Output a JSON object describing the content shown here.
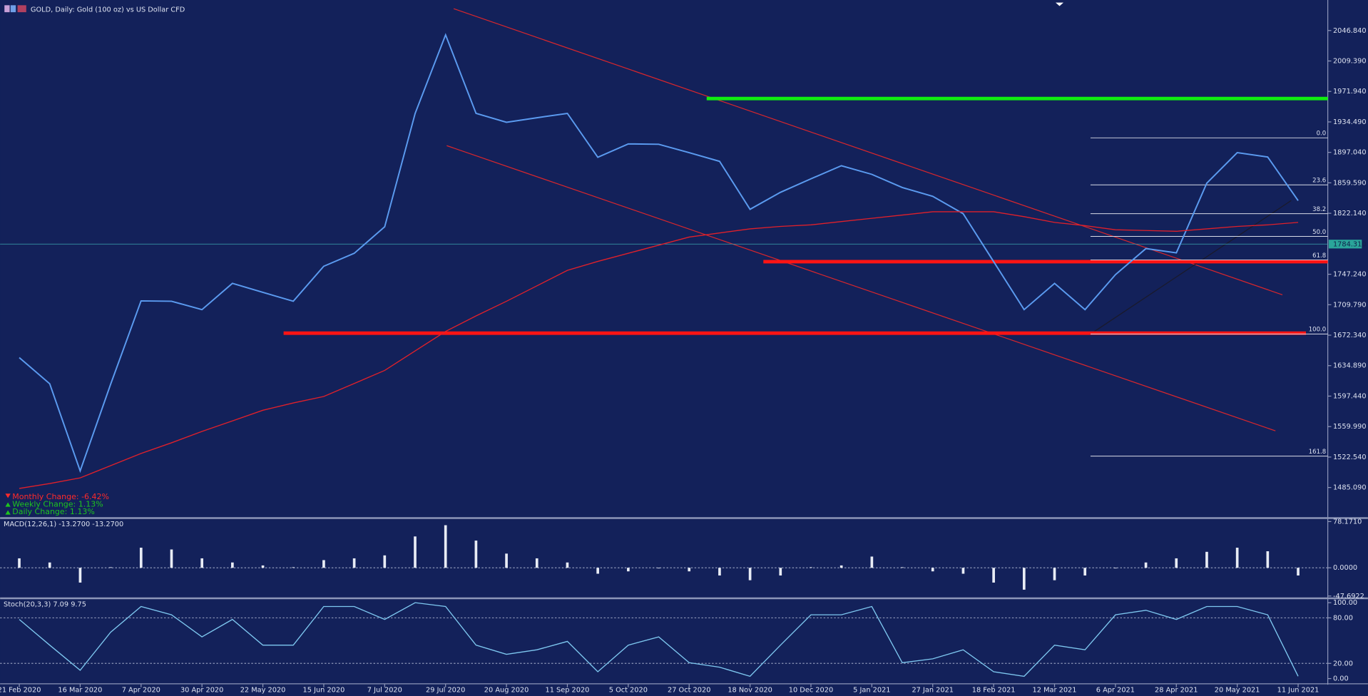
{
  "chart_data": [
    {
      "type": "line",
      "title": "GOLD, Daily:  Gold (100 oz) vs US Dollar CFD",
      "categories": [
        "21 Feb 2020",
        null,
        "16 Mar 2020",
        null,
        "7 Apr 2020",
        null,
        "30 Apr 2020",
        null,
        "22 May 2020",
        null,
        "15 Jun 2020",
        null,
        "7 Jul 2020",
        null,
        "29 Jul 2020",
        null,
        "20 Aug 2020",
        null,
        "11 Sep 2020",
        null,
        "5 Oct 2020",
        null,
        "27 Oct 2020",
        null,
        "18 Nov 2020",
        null,
        "10 Dec 2020",
        null,
        "5 Jan 2021",
        null,
        "27 Jan 2021",
        null,
        "18 Feb 2021",
        null,
        "12 Mar 2021",
        null,
        "6 Apr 2021",
        null,
        "28 Apr 2021",
        null,
        "20 May 2021",
        null,
        "11 Jun 2021"
      ],
      "series": [
        {
          "color": "#5b9bf0",
          "values": [
            1644.8,
            1612.6,
            1505.5,
            1612,
            1714.5,
            1714,
            1703.8,
            1736,
            1725,
            1714,
            1757,
            1773,
            1805.6,
            1945,
            2041.5,
            1945,
            1934,
            1939.6,
            1945,
            1891,
            1907.5,
            1907,
            1896.7,
            1886,
            1827,
            1848,
            1864.6,
            1880.7,
            1870,
            1853.9,
            1843,
            1821.7,
            1762.7,
            1703.8,
            1736,
            1703.8,
            1746.7,
            1778.8,
            1773.5,
            1859.2,
            1896.7,
            1891.4,
            1837.8
          ]
        },
        {
          "color": "#e0202a",
          "values": [
            1484,
            1490,
            1497,
            1512,
            1527,
            1540,
            1554,
            1567,
            1580,
            1589,
            1597,
            1613,
            1629,
            1653,
            1677,
            1696,
            1714,
            1733,
            1752,
            1763,
            1773,
            1783,
            1793,
            1798,
            1803,
            1806,
            1808,
            1812,
            1816,
            1820,
            1824,
            1824,
            1824,
            1818,
            1811,
            1807,
            1802,
            1801,
            1800,
            1803,
            1806,
            1808,
            1811
          ]
        }
      ],
      "ylim": [
        1448.6,
        2082.2
      ],
      "yticks": [
        {
          "value": 2046.84,
          "label": "2046.840"
        },
        {
          "value": 2009.39,
          "label": "2009.390"
        },
        {
          "value": 1971.94,
          "label": "1971.940"
        },
        {
          "value": 1934.49,
          "label": "1934.490"
        },
        {
          "value": 1897.04,
          "label": "1897.040"
        },
        {
          "value": 1859.59,
          "label": "1859.590"
        },
        {
          "value": 1822.14,
          "label": "1822.140"
        },
        {
          "value": 1747.24,
          "label": "1747.240"
        },
        {
          "value": 1709.79,
          "label": "1709.790"
        },
        {
          "value": 1672.34,
          "label": "1672.340"
        },
        {
          "value": 1634.89,
          "label": "1634.890"
        },
        {
          "value": 1597.44,
          "label": "1597.440"
        },
        {
          "value": 1559.99,
          "label": "1559.990"
        },
        {
          "value": 1522.54,
          "label": "1522.540"
        },
        {
          "value": 1485.09,
          "label": "1485.090"
        }
      ],
      "current_price": {
        "value": 1784.31,
        "label": "1784.310"
      },
      "levels": [
        {
          "value": 1963.2,
          "color": "#10ee10"
        },
        {
          "value": 1762.7,
          "color": "#ff1414"
        },
        {
          "value": 1674.8,
          "color": "#ff1414"
        }
      ],
      "fibonacci": [
        {
          "value": 1914.9,
          "label": "0.0"
        },
        {
          "value": 1857.1,
          "label": "23.6"
        },
        {
          "value": 1821.7,
          "label": "38.2"
        },
        {
          "value": 1793.8,
          "label": "50.0"
        },
        {
          "value": 1764.9,
          "label": "61.8"
        },
        {
          "value": 1673.8,
          "label": "100.0"
        },
        {
          "value": 1523.7,
          "label": "161.8"
        }
      ],
      "annotations": [
        {
          "text": "Monthly Change: -6.42%",
          "color": "#ff2a2a"
        },
        {
          "text": "Weekly Change: 1.13%",
          "color": "#1ec41e"
        },
        {
          "text": "Daily Change: 1.13%",
          "color": "#1ec41e"
        }
      ]
    },
    {
      "type": "bar",
      "title": "MACD(12,26,1) -13.2700 -13.2700",
      "color": "#e8ecf5",
      "values": [
        16,
        9,
        -25,
        1,
        34,
        31,
        16,
        9,
        4,
        1,
        13,
        16,
        21,
        53,
        72,
        46,
        24,
        16,
        9,
        -10,
        -6,
        -1,
        -6,
        -13,
        -21,
        -13,
        1,
        4,
        19,
        1,
        -6,
        -10,
        -25,
        -37,
        -21,
        -13,
        -1,
        9,
        16,
        27,
        34,
        28,
        -13
      ],
      "ylim": [
        -50.1,
        81.1
      ],
      "yticks": [
        {
          "value": 78.171,
          "label": "78.1710"
        },
        {
          "value": 0,
          "label": "0.0000"
        },
        {
          "value": -47.6922,
          "label": "-47.6922"
        }
      ]
    },
    {
      "type": "line",
      "title": "Stoch(20,3,3) 7.09 9.75",
      "series": [
        {
          "color": "#7ec8f0",
          "values": [
            78,
            44,
            11,
            61,
            95,
            84,
            55,
            78,
            44,
            44,
            95,
            95,
            78,
            100,
            95,
            44,
            32,
            38,
            49,
            9,
            44,
            55,
            21,
            15,
            3,
            44,
            84,
            84,
            95,
            21,
            26,
            38,
            9,
            3,
            44,
            38,
            84,
            90,
            78,
            95,
            95,
            84,
            3
          ]
        }
      ],
      "ylim": [
        -5.7,
        104.6
      ],
      "yticks": [
        {
          "value": 100,
          "label": "100.00"
        },
        {
          "value": 80,
          "label": "80.00"
        },
        {
          "value": 20,
          "label": "20.00"
        },
        {
          "value": 0,
          "label": "0.00"
        }
      ],
      "levels": [
        80,
        20
      ]
    }
  ]
}
